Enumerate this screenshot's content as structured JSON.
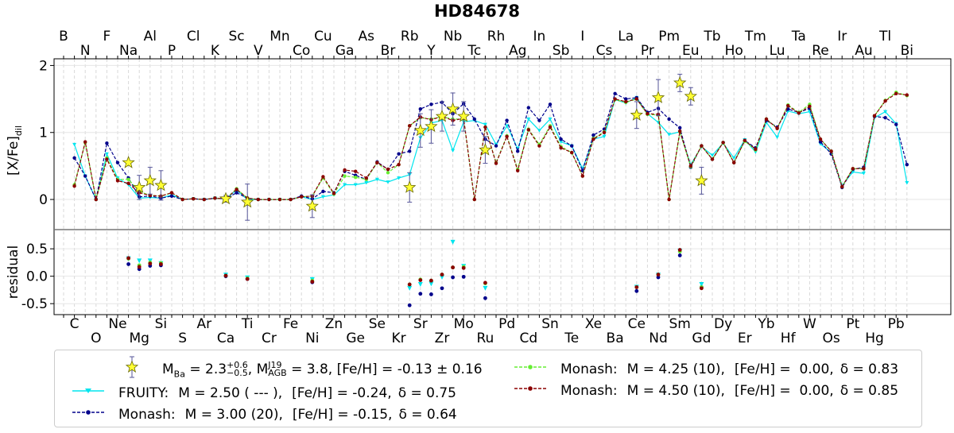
{
  "chart_data": {
    "type": "line",
    "title": "HD84678",
    "ylabel_top": "[X/Fe]",
    "ylabel_top_sub": "dil",
    "ylabel_bottom": "residual",
    "ylim_top": [
      -0.45,
      2.1
    ],
    "yticks_top": [
      "0",
      "1",
      "2"
    ],
    "ylim_bottom": [
      -0.7,
      0.85
    ],
    "yticks_bottom": [
      "0.5",
      "0.0",
      "-0.5"
    ],
    "elements_top_row1": [
      "B",
      "F",
      "Al",
      "Cl",
      "Sc",
      "Mn",
      "Cu",
      "As",
      "Rb",
      "Nb",
      "Rh",
      "In",
      "I",
      "La",
      "Pm",
      "Tb",
      "Tm",
      "Ta",
      "Ir",
      "Tl"
    ],
    "elements_top_row2": [
      "N",
      "Na",
      "P",
      "K",
      "V",
      "Co",
      "Ga",
      "Br",
      "Y",
      "Tc",
      "Ag",
      "Sb",
      "Cs",
      "Pr",
      "Eu",
      "Ho",
      "Lu",
      "Re",
      "Au",
      "Bi"
    ],
    "elements_bottom_row1": [
      "C",
      "Ne",
      "Si",
      "Ar",
      "Ti",
      "Fe",
      "Zn",
      "Se",
      "Sr",
      "Mo",
      "Pd",
      "Sn",
      "Xe",
      "Ce",
      "Sm",
      "Dy",
      "Yb",
      "W",
      "Pt",
      "Pb"
    ],
    "elements_bottom_row2": [
      "O",
      "Mg",
      "S",
      "Ca",
      "Cr",
      "Ni",
      "Ge",
      "Kr",
      "Zr",
      "Ru",
      "Cd",
      "Te",
      "Ba",
      "Nd",
      "Gd",
      "Er",
      "Hf",
      "Os",
      "Hg"
    ],
    "observed": {
      "name": "M_Ba = 2.3 (+0.6/-0.5), M_AGB^J19 = 3.8, [Fe/H] = -0.13 ± 0.16",
      "points": [
        {
          "el": "Na",
          "y": 0.55,
          "err": 0.0
        },
        {
          "el": "Mg",
          "y": 0.18,
          "err": 0.18
        },
        {
          "el": "Al",
          "y": 0.28,
          "err": 0.2
        },
        {
          "el": "Si",
          "y": 0.21,
          "err": 0.22
        },
        {
          "el": "Ca",
          "y": 0.01,
          "err": 0.05
        },
        {
          "el": "Ti",
          "y": -0.04,
          "err": 0.27
        },
        {
          "el": "Ni",
          "y": -0.1,
          "err": 0.17
        },
        {
          "el": "Rb",
          "y": 0.18,
          "err": 0.22
        },
        {
          "el": "Sr",
          "y": 1.03,
          "err": 0.25
        },
        {
          "el": "Y",
          "y": 1.09,
          "err": 0.25
        },
        {
          "el": "Zr",
          "y": 1.24,
          "err": 0.22
        },
        {
          "el": "Nb",
          "y": 1.35,
          "err": 0.24
        },
        {
          "el": "Mo",
          "y": 1.24,
          "err": 0.22
        },
        {
          "el": "Ru",
          "y": 0.74,
          "err": 0.2
        },
        {
          "el": "Ce",
          "y": 1.26,
          "err": 0.2
        },
        {
          "el": "Nd",
          "y": 1.52,
          "err": 0.27
        },
        {
          "el": "Sm",
          "y": 1.74,
          "err": 0.13
        },
        {
          "el": "Eu",
          "y": 1.54,
          "err": 0.13
        },
        {
          "el": "Gd",
          "y": 0.28,
          "err": 0.2
        }
      ]
    },
    "series": [
      {
        "name": "FRUITY",
        "color": "#00e5ee",
        "style": "solid",
        "marker": "triangle",
        "legend_label": "FRUITY:",
        "legend_mass": "M = 2.50 ( --- ),",
        "legend_feh": "[Fe/H] = -0.24,",
        "legend_delta": "δ = 0.75",
        "values": {
          "C": 0.82,
          "N": 0.35,
          "O": 0.0,
          "F": 0.68,
          "Ne": 0.32,
          "Na": 0.22,
          "Mg": 0.02,
          "Al": 0.03,
          "Si": 0.02,
          "P": 0.07,
          "S": 0.0,
          "Cl": 0.01,
          "Ar": 0.0,
          "K": 0.02,
          "Ca": 0.01,
          "Sc": 0.14,
          "Ti": 0.0,
          "V": 0.0,
          "Cr": 0.0,
          "Mn": 0.0,
          "Fe": 0.0,
          "Co": 0.04,
          "Ni": 0.0,
          "Cu": 0.04,
          "Zn": 0.07,
          "Ga": 0.22,
          "Ge": 0.22,
          "As": 0.25,
          "Se": 0.3,
          "Br": 0.26,
          "Kr": 0.32,
          "Rb": 0.37,
          "Sr": 0.92,
          "Y": 1.14,
          "Zr": 1.18,
          "Nb": 0.73,
          "Mo": 1.16,
          "Tc": 1.18,
          "Ru": 1.12,
          "Rh": 0.82,
          "Pd": 1.1,
          "Ag": 0.76,
          "Cd": 1.2,
          "In": 1.03,
          "Sn": 1.2,
          "Sb": 0.86,
          "Te": 0.8,
          "I": 0.46,
          "Xe": 0.9,
          "Cs": 0.94,
          "Ba": 1.49,
          "La": 1.44,
          "Ce": 1.52,
          "Pr": 1.28,
          "Nd": 1.15,
          "Pm": 0.97,
          "Sm": 1.01,
          "Eu": 0.52,
          "Gd": 0.79,
          "Tb": 0.66,
          "Dy": 0.84,
          "Ho": 0.62,
          "Er": 0.89,
          "Tm": 0.71,
          "Yb": 1.15,
          "Lu": 0.93,
          "Hf": 1.32,
          "Ta": 1.28,
          "W": 1.31,
          "Re": 0.83,
          "Os": 0.7,
          "Ir": 0.21,
          "Pt": 0.41,
          "Au": 0.39,
          "Hg": 1.22,
          "Tl": 1.31,
          "Pb": 1.13,
          "Bi": 0.25
        },
        "residuals": {
          "Na": 0.32,
          "Mg": 0.28,
          "Al": 0.28,
          "Si": 0.23,
          "Ca": 0.02,
          "Ti": -0.03,
          "Ni": -0.06,
          "Rb": -0.22,
          "Sr": -0.15,
          "Y": -0.14,
          "Zr": -0.02,
          "Nb": 0.62,
          "Mo": 0.18,
          "Ru": -0.22,
          "Ce": -0.2,
          "Nd": 0.02,
          "Sm": 0.46,
          "Gd": -0.15
        }
      },
      {
        "name": "Monash M=3.00",
        "color": "#00008b",
        "style": "dashed",
        "marker": "circle",
        "legend_label": "Monash:",
        "legend_mass": "M = 3.00 (20),",
        "legend_feh": "[Fe/H] = -0.15,",
        "legend_delta": "δ = 0.64",
        "values": {
          "C": 0.62,
          "N": 0.35,
          "O": 0.0,
          "F": 0.84,
          "Ne": 0.55,
          "Na": 0.32,
          "Mg": 0.04,
          "Al": 0.05,
          "Si": 0.02,
          "P": 0.05,
          "S": 0.0,
          "Cl": 0.01,
          "Ar": 0.0,
          "K": 0.02,
          "Ca": 0.01,
          "Sc": 0.1,
          "Ti": 0.02,
          "V": 0.0,
          "Cr": 0.0,
          "Mn": 0.0,
          "Fe": 0.0,
          "Co": 0.05,
          "Ni": 0.01,
          "Cu": 0.12,
          "Zn": 0.1,
          "Ga": 0.42,
          "Ge": 0.36,
          "As": 0.3,
          "Se": 0.56,
          "Br": 0.45,
          "Kr": 0.68,
          "Rb": 0.72,
          "Sr": 1.35,
          "Y": 1.42,
          "Zr": 1.45,
          "Nb": 1.28,
          "Mo": 1.43,
          "Tc": 1.2,
          "Ru": 0.9,
          "Rh": 0.8,
          "Pd": 1.18,
          "Ag": 0.72,
          "Cd": 1.37,
          "In": 1.18,
          "Sn": 1.42,
          "Sb": 0.9,
          "Te": 0.8,
          "I": 0.43,
          "Xe": 0.96,
          "Cs": 1.05,
          "Ba": 1.58,
          "La": 1.5,
          "Ce": 1.52,
          "Pr": 1.3,
          "Nd": 1.36,
          "Pm": 1.2,
          "Sm": 1.07,
          "Eu": 0.48,
          "Gd": 0.8,
          "Tb": 0.6,
          "Dy": 0.85,
          "Ho": 0.55,
          "Er": 0.88,
          "Tm": 0.77,
          "Yb": 1.18,
          "Lu": 1.08,
          "Hf": 1.35,
          "Ta": 1.3,
          "W": 1.36,
          "Re": 0.86,
          "Os": 0.68,
          "Ir": 0.18,
          "Pt": 0.45,
          "Au": 0.48,
          "Hg": 1.24,
          "Tl": 1.22,
          "Pb": 1.12,
          "Bi": 0.52
        },
        "residuals": {
          "Na": 0.22,
          "Mg": 0.13,
          "Al": 0.19,
          "Si": 0.2,
          "Ca": 0.0,
          "Ti": -0.05,
          "Ni": -0.11,
          "Rb": -0.53,
          "Sr": -0.32,
          "Y": -0.33,
          "Zr": -0.22,
          "Nb": -0.02,
          "Mo": -0.01,
          "Ru": -0.4,
          "Ce": -0.27,
          "Nd": -0.02,
          "Sm": 0.38,
          "Gd": -0.2
        }
      },
      {
        "name": "Monash M=4.25",
        "color": "#66ee33",
        "style": "dashed",
        "marker": "circle",
        "legend_label": "Monash:",
        "legend_mass": "M = 4.25 (10),",
        "legend_feh": "[Fe/H] =  0.00,",
        "legend_delta": "δ = 0.83",
        "values": {
          "C": 0.22,
          "N": 0.85,
          "O": 0.0,
          "F": 0.62,
          "Ne": 0.3,
          "Na": 0.3,
          "Mg": 0.12,
          "Al": 0.06,
          "Si": 0.05,
          "P": 0.1,
          "S": 0.0,
          "Cl": 0.01,
          "Ar": 0.0,
          "K": 0.02,
          "Ca": 0.01,
          "Sc": 0.16,
          "Ti": 0.02,
          "V": 0.0,
          "Cr": 0.0,
          "Mn": 0.0,
          "Fe": 0.0,
          "Co": 0.04,
          "Ni": 0.05,
          "Cu": 0.32,
          "Zn": 0.08,
          "Ga": 0.35,
          "Ge": 0.33,
          "As": 0.3,
          "Se": 0.55,
          "Br": 0.4,
          "Kr": 0.52,
          "Rb": 1.1,
          "Sr": 1.22,
          "Y": 1.2,
          "Zr": 1.24,
          "Nb": 1.2,
          "Mo": 1.2,
          "Tc": 0.0,
          "Ru": 1.08,
          "Rh": 0.55,
          "Pd": 0.95,
          "Ag": 0.45,
          "Cd": 1.05,
          "In": 0.82,
          "Sn": 1.1,
          "Sb": 0.79,
          "Te": 0.7,
          "I": 0.35,
          "Xe": 0.91,
          "Cs": 1.01,
          "Ba": 1.49,
          "La": 1.45,
          "Ce": 1.5,
          "Pr": 1.27,
          "Nd": 1.26,
          "Pm": 0.0,
          "Sm": 1.01,
          "Eu": 0.49,
          "Gd": 0.8,
          "Tb": 0.6,
          "Dy": 0.85,
          "Ho": 0.55,
          "Er": 0.87,
          "Tm": 0.74,
          "Yb": 1.2,
          "Lu": 1.06,
          "Hf": 1.41,
          "Ta": 1.3,
          "W": 1.42,
          "Re": 0.9,
          "Os": 0.72,
          "Ir": 0.19,
          "Pt": 0.46,
          "Au": 0.46,
          "Hg": 1.25,
          "Tl": 1.48,
          "Pb": 1.6,
          "Bi": 1.55
        },
        "residuals": {
          "Na": 0.32,
          "Mg": 0.2,
          "Al": 0.25,
          "Si": 0.24,
          "Ca": 0.01,
          "Ti": -0.04,
          "Ni": -0.08,
          "Rb": -0.15,
          "Sr": -0.06,
          "Y": -0.08,
          "Zr": 0.03,
          "Nb": 0.16,
          "Mo": 0.17,
          "Ru": -0.13,
          "Ce": -0.2,
          "Nd": 0.03,
          "Sm": 0.45,
          "Gd": -0.2
        }
      },
      {
        "name": "Monash M=4.50",
        "color": "#8b0000",
        "style": "dashed",
        "marker": "circle",
        "legend_label": "Monash:",
        "legend_mass": "M = 4.50 (10),",
        "legend_feh": "[Fe/H] =  0.00,",
        "legend_delta": "δ = 0.85",
        "values": {
          "C": 0.2,
          "N": 0.86,
          "O": 0.0,
          "F": 0.6,
          "Ne": 0.28,
          "Na": 0.24,
          "Mg": 0.1,
          "Al": 0.06,
          "Si": 0.05,
          "P": 0.1,
          "S": 0.0,
          "Cl": 0.01,
          "Ar": 0.0,
          "K": 0.02,
          "Ca": 0.01,
          "Sc": 0.15,
          "Ti": 0.02,
          "V": 0.0,
          "Cr": 0.0,
          "Mn": 0.0,
          "Fe": 0.0,
          "Co": 0.04,
          "Ni": 0.05,
          "Cu": 0.34,
          "Zn": 0.09,
          "Ga": 0.44,
          "Ge": 0.42,
          "As": 0.32,
          "Se": 0.55,
          "Br": 0.45,
          "Kr": 0.52,
          "Rb": 1.1,
          "Sr": 1.23,
          "Y": 1.19,
          "Zr": 1.24,
          "Nb": 1.18,
          "Mo": 1.21,
          "Tc": 0.0,
          "Ru": 1.08,
          "Rh": 0.54,
          "Pd": 0.94,
          "Ag": 0.43,
          "Cd": 1.04,
          "In": 0.8,
          "Sn": 1.08,
          "Sb": 0.77,
          "Te": 0.7,
          "I": 0.35,
          "Xe": 0.9,
          "Cs": 1.0,
          "Ba": 1.5,
          "La": 1.46,
          "Ce": 1.5,
          "Pr": 1.28,
          "Nd": 1.27,
          "Pm": 0.0,
          "Sm": 1.02,
          "Eu": 0.5,
          "Gd": 0.8,
          "Tb": 0.6,
          "Dy": 0.85,
          "Ho": 0.55,
          "Er": 0.88,
          "Tm": 0.75,
          "Yb": 1.2,
          "Lu": 1.06,
          "Hf": 1.4,
          "Ta": 1.29,
          "W": 1.39,
          "Re": 0.9,
          "Os": 0.72,
          "Ir": 0.19,
          "Pt": 0.46,
          "Au": 0.46,
          "Hg": 1.25,
          "Tl": 1.47,
          "Pb": 1.58,
          "Bi": 1.56
        },
        "residuals": {
          "Na": 0.33,
          "Mg": 0.17,
          "Al": 0.23,
          "Si": 0.22,
          "Ca": 0.01,
          "Ti": -0.05,
          "Ni": -0.1,
          "Rb": -0.15,
          "Sr": -0.07,
          "Y": -0.08,
          "Zr": 0.03,
          "Nb": 0.16,
          "Mo": 0.15,
          "Ru": -0.12,
          "Ce": -0.2,
          "Nd": 0.03,
          "Sm": 0.48,
          "Gd": -0.22
        }
      }
    ]
  },
  "legend": {
    "observed_prefix": "M",
    "observed_sub": "Ba",
    "observed_mass": " = 2.3",
    "observed_err_up": "+0.6",
    "observed_err_down": "−0.5",
    "observed_comma": ", M",
    "observed_agb_sup": "J19",
    "observed_agb_sub": "AGB",
    "observed_rest": " = 3.8, [Fe/H] = -0.13 ± 0.16"
  }
}
